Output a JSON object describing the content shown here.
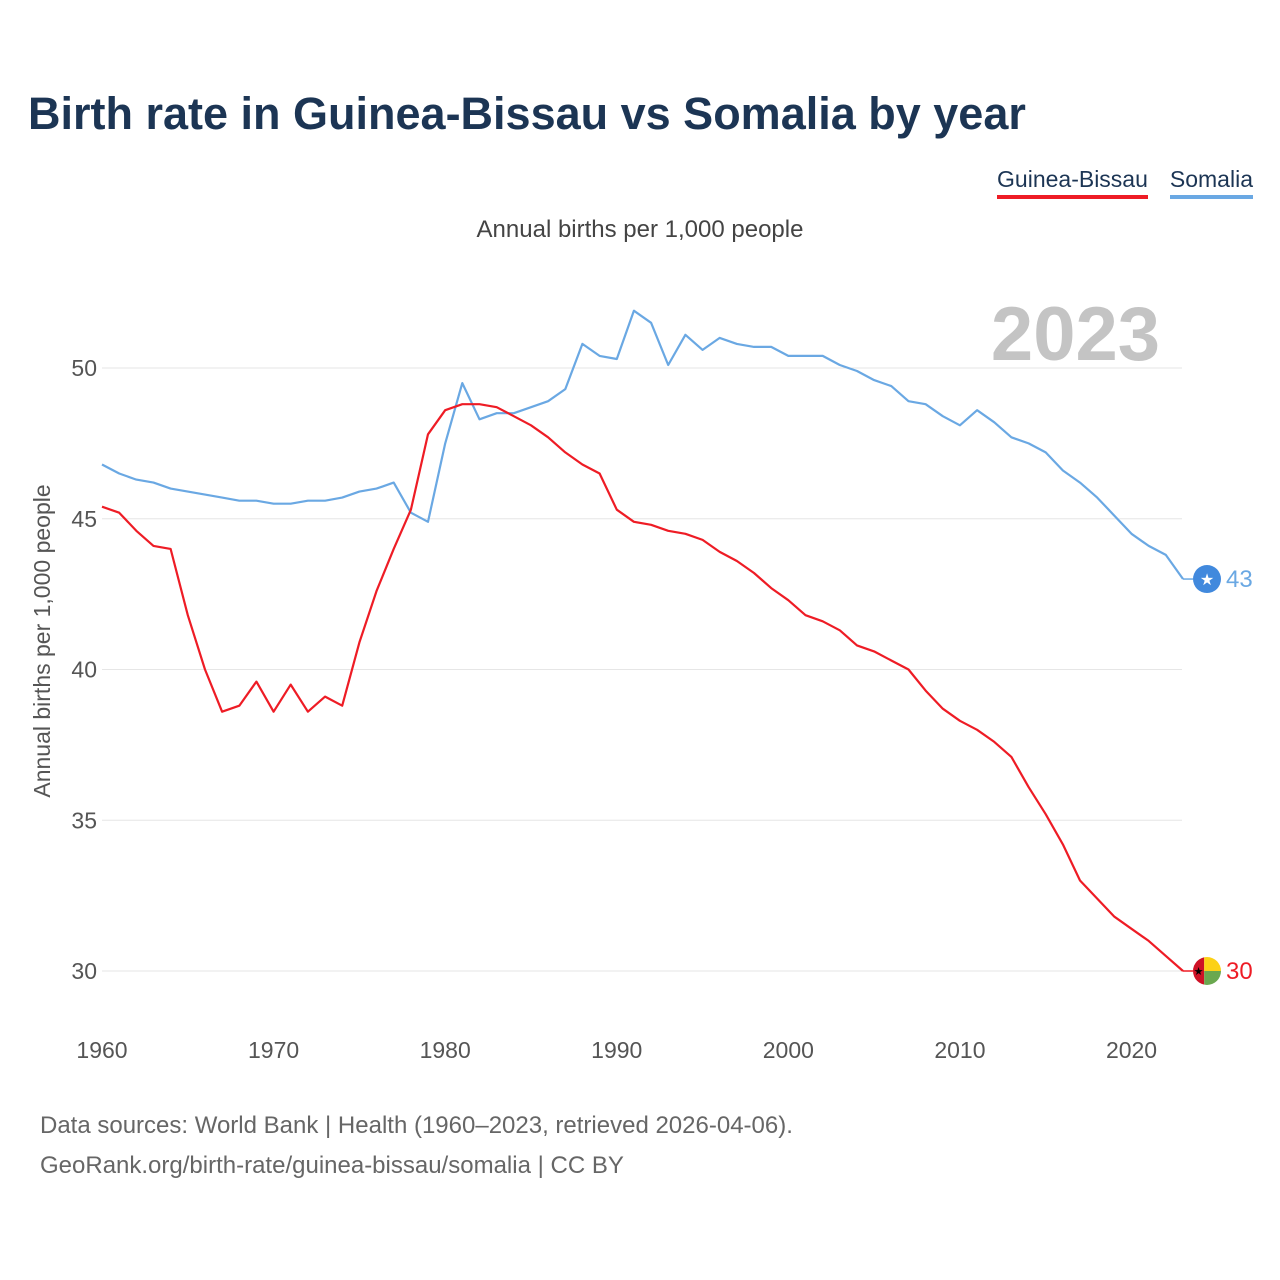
{
  "title": "Birth rate in Guinea-Bissau vs Somalia by year",
  "legend": [
    {
      "name": "Guinea-Bissau",
      "color": "#ee1c25"
    },
    {
      "name": "Somalia",
      "color": "#6aa8e3"
    }
  ],
  "subtitle": "Annual births per 1,000 people",
  "footer": {
    "line1": "Data sources: World Bank | Health (1960–2023, retrieved 2026-04-06).",
    "line2": "GeoRank.org/birth-rate/guinea-bissau/somalia | CC BY"
  },
  "chart_data": {
    "type": "line",
    "title": "Birth rate in Guinea-Bissau vs Somalia by year",
    "ylabel": "Annual births per 1,000 people",
    "xlabel": "",
    "year_label": "2023",
    "xlim": [
      1960,
      2023
    ],
    "ylim": [
      28.5,
      53
    ],
    "xticks": [
      1960,
      1970,
      1980,
      1990,
      2000,
      2010,
      2020
    ],
    "yticks": [
      30,
      35,
      40,
      45,
      50
    ],
    "grid": true,
    "x": [
      1960,
      1961,
      1962,
      1963,
      1964,
      1965,
      1966,
      1967,
      1968,
      1969,
      1970,
      1971,
      1972,
      1973,
      1974,
      1975,
      1976,
      1977,
      1978,
      1979,
      1980,
      1981,
      1982,
      1983,
      1984,
      1985,
      1986,
      1987,
      1988,
      1989,
      1990,
      1991,
      1992,
      1993,
      1994,
      1995,
      1996,
      1997,
      1998,
      1999,
      2000,
      2001,
      2002,
      2003,
      2004,
      2005,
      2006,
      2007,
      2008,
      2009,
      2010,
      2011,
      2012,
      2013,
      2014,
      2015,
      2016,
      2017,
      2018,
      2019,
      2020,
      2021,
      2022,
      2023
    ],
    "series": [
      {
        "name": "Guinea-Bissau",
        "color": "#ee1c25",
        "end_label": "30",
        "values": [
          45.4,
          45.2,
          44.6,
          44.1,
          44.0,
          41.8,
          40.0,
          38.6,
          38.8,
          39.6,
          38.6,
          39.5,
          38.6,
          39.1,
          38.8,
          40.9,
          42.6,
          44.0,
          45.3,
          47.8,
          48.6,
          48.8,
          48.8,
          48.7,
          48.4,
          48.1,
          47.7,
          47.2,
          46.8,
          46.5,
          45.3,
          44.9,
          44.8,
          44.6,
          44.5,
          44.3,
          43.9,
          43.6,
          43.2,
          42.7,
          42.3,
          41.8,
          41.6,
          41.3,
          40.8,
          40.6,
          40.3,
          40.0,
          39.3,
          38.7,
          38.3,
          38.0,
          37.6,
          37.1,
          36.1,
          35.2,
          34.2,
          33.0,
          32.4,
          31.8,
          31.4,
          31.0,
          30.5,
          30.0
        ]
      },
      {
        "name": "Somalia",
        "color": "#6aa8e3",
        "end_label": "43",
        "values": [
          46.8,
          46.5,
          46.3,
          46.2,
          46.0,
          45.9,
          45.8,
          45.7,
          45.6,
          45.6,
          45.5,
          45.5,
          45.6,
          45.6,
          45.7,
          45.9,
          46.0,
          46.2,
          45.2,
          44.9,
          47.5,
          49.5,
          48.3,
          48.5,
          48.5,
          48.7,
          48.9,
          49.3,
          50.8,
          50.4,
          50.3,
          51.9,
          51.5,
          50.1,
          51.1,
          50.6,
          51.0,
          50.8,
          50.7,
          50.7,
          50.4,
          50.4,
          50.4,
          50.1,
          49.9,
          49.6,
          49.4,
          48.9,
          48.8,
          48.4,
          48.1,
          48.6,
          48.2,
          47.7,
          47.5,
          47.2,
          46.6,
          46.2,
          45.7,
          45.1,
          44.5,
          44.1,
          43.8,
          43.0
        ]
      }
    ]
  }
}
